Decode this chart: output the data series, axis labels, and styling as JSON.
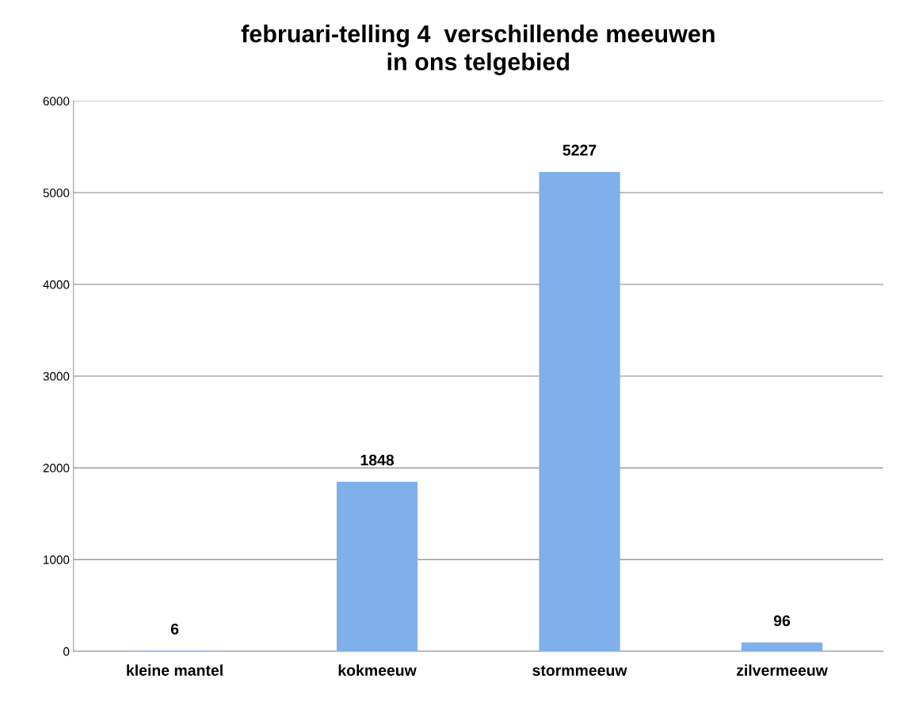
{
  "chart_data": {
    "type": "bar",
    "title": "februari-telling 4  verschillende meeuwen\nin ons telgebied",
    "categories": [
      "kleine mantel",
      "kokmeeuw",
      "stormmeeuw",
      "zilvermeeuw"
    ],
    "values": [
      6,
      1848,
      5227,
      96
    ],
    "color": "#7fb0ea",
    "ylim": [
      0,
      6000
    ],
    "yticks": [
      0,
      1000,
      2000,
      3000,
      4000,
      5000,
      6000
    ],
    "grid": "y",
    "data_labels": true
  }
}
